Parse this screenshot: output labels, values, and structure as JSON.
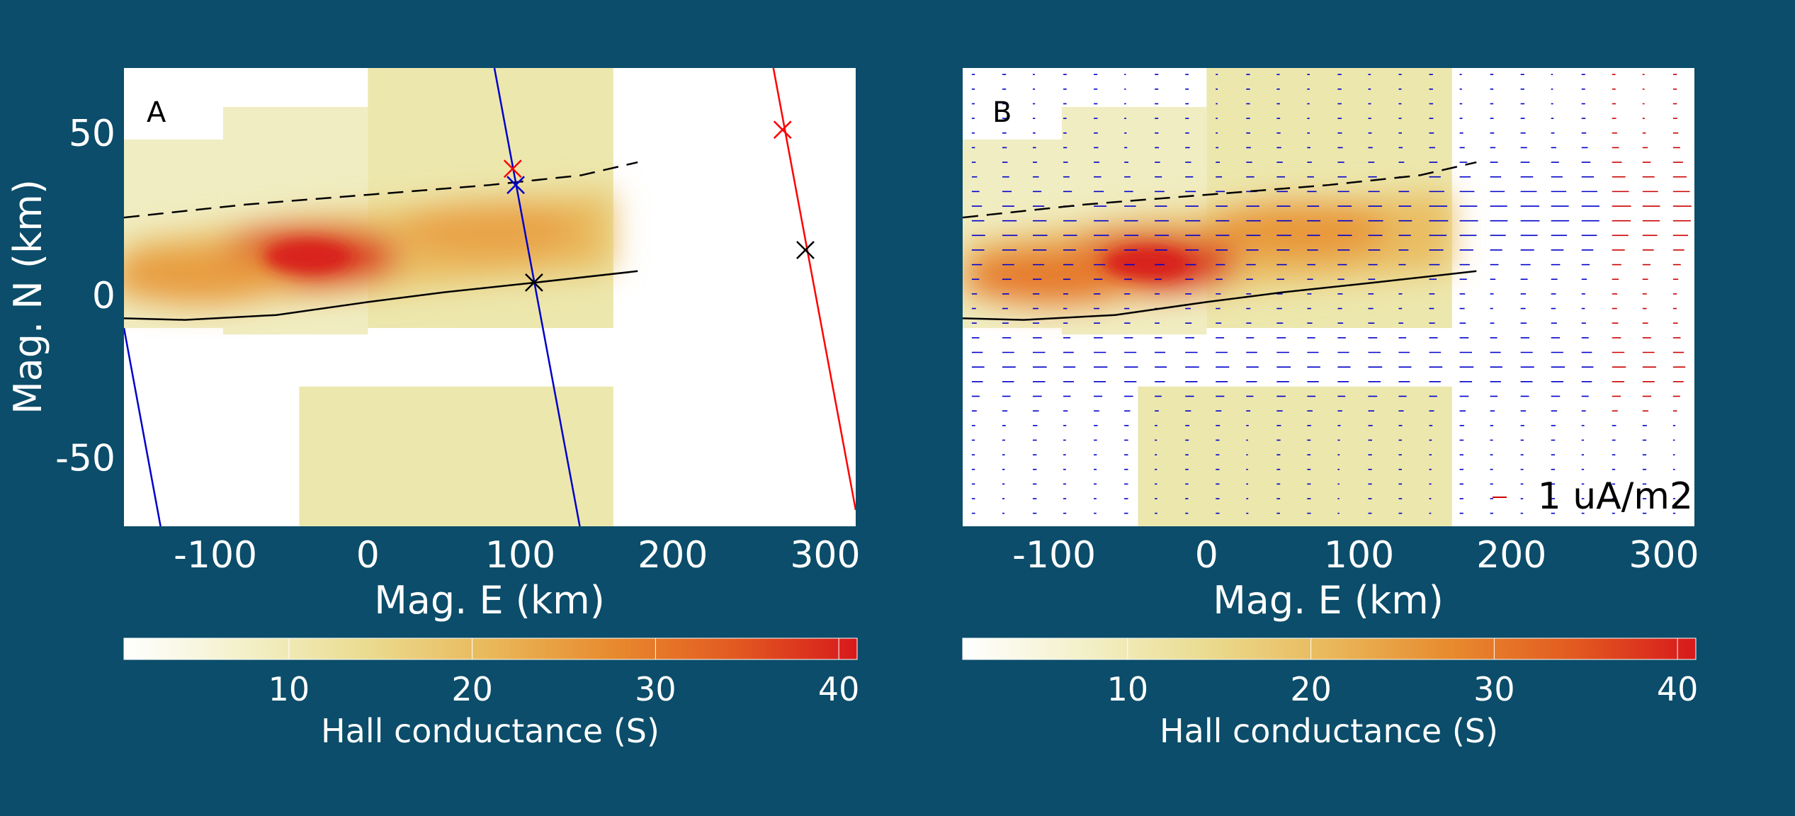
{
  "figure": {
    "background": "#0b4d6a"
  },
  "chart_data": [
    {
      "type": "heatmap",
      "panel_label": "A",
      "xlabel": "Mag. E (km)",
      "ylabel": "Mag. N (km)",
      "xlim": [
        -160,
        320
      ],
      "ylim": [
        -71,
        70
      ],
      "xticks": [
        -100,
        0,
        100,
        200,
        300
      ],
      "xtick_labels": [
        "-100",
        "0",
        "100",
        "200",
        "300"
      ],
      "yticks": [
        50,
        0,
        -50
      ],
      "ytick_labels": [
        "50",
        "0",
        "-50"
      ],
      "heatmap": {
        "x_range": [
          -160,
          161
        ],
        "description": "conductance band centered near y=10, peak ~40 S at x=-40",
        "bands": [
          {
            "x0": -160,
            "x1": -95,
            "y0": 48,
            "y1": -10,
            "level": 2
          },
          {
            "x0": -95,
            "x1": 0,
            "y0": 58,
            "y1": -12,
            "level": 2
          },
          {
            "x0": 0,
            "x1": 161,
            "y0": 70,
            "y1": -10,
            "level": 3
          },
          {
            "x0": -45,
            "x1": 161,
            "y0": -28,
            "y1": -71,
            "level": 3
          }
        ],
        "peaks": [
          {
            "x": -40,
            "y": 12,
            "value": 40
          },
          {
            "x": -110,
            "y": 6,
            "value": 25
          },
          {
            "x": 80,
            "y": 20,
            "value": 24
          }
        ]
      },
      "lines": [
        {
          "name": "dashed",
          "color": "#000000",
          "dash": true,
          "points": [
            [
              -160,
              24
            ],
            [
              -80,
              28
            ],
            [
              0,
              31
            ],
            [
              80,
              34
            ],
            [
              140,
              37
            ],
            [
              177,
              41
            ]
          ]
        },
        {
          "name": "solid",
          "color": "#000000",
          "dash": false,
          "points": [
            [
              -160,
              -7
            ],
            [
              -120,
              -7.5
            ],
            [
              -60,
              -6
            ],
            [
              0,
              -2
            ],
            [
              50,
              1
            ],
            [
              110,
              4
            ],
            [
              177,
              7.5
            ]
          ]
        },
        {
          "name": "blue-track-1",
          "color": "#0000cc",
          "dash": false,
          "points": [
            [
              -160,
              -10
            ],
            [
              -136,
              -71
            ]
          ]
        },
        {
          "name": "blue-track-2",
          "color": "#0000cc",
          "dash": false,
          "points": [
            [
              83,
              70
            ],
            [
              139,
              -71
            ]
          ]
        },
        {
          "name": "red-track",
          "color": "#ff0000",
          "dash": false,
          "points": [
            [
              266,
              70
            ],
            [
              320,
              -66
            ]
          ]
        }
      ],
      "markers": [
        {
          "x": 95,
          "y": 39,
          "color": "#ff0000"
        },
        {
          "x": 97,
          "y": 34,
          "color": "#0000cc"
        },
        {
          "x": 109,
          "y": 4,
          "color": "#000000"
        },
        {
          "x": 272,
          "y": 51,
          "color": "#ff0000"
        },
        {
          "x": 287,
          "y": 14,
          "color": "#000000"
        }
      ],
      "colorbar": {
        "label": "Hall conductance (S)",
        "ticks": [
          10,
          20,
          30,
          40
        ],
        "tick_labels": [
          "10",
          "20",
          "30",
          "40"
        ],
        "range": [
          1,
          41
        ],
        "colors": [
          "#ffffff",
          "#f3f0c8",
          "#eadb8f",
          "#e9b85a",
          "#e88a2e",
          "#e25a20",
          "#d7191c"
        ]
      }
    },
    {
      "type": "heatmap",
      "panel_label": "B",
      "xlabel": "Mag. E (km)",
      "xlim": [
        -160,
        320
      ],
      "ylim": [
        -71,
        70
      ],
      "xticks": [
        -100,
        0,
        100,
        200,
        300
      ],
      "xtick_labels": [
        "-100",
        "0",
        "100",
        "200",
        "300"
      ],
      "heatmap": {
        "x_range": [
          -160,
          161
        ],
        "description": "conductance band tilted upward, peak ~40 S at x=-40 y=10",
        "bands": [
          {
            "x0": -160,
            "x1": -95,
            "y0": 48,
            "y1": -10,
            "level": 2
          },
          {
            "x0": -95,
            "x1": 0,
            "y0": 58,
            "y1": -12,
            "level": 2
          },
          {
            "x0": 0,
            "x1": 161,
            "y0": 70,
            "y1": -10,
            "level": 3
          },
          {
            "x0": -45,
            "x1": 161,
            "y0": -28,
            "y1": -71,
            "level": 3
          }
        ],
        "peaks": [
          {
            "x": -40,
            "y": 10,
            "value": 40
          },
          {
            "x": -100,
            "y": 6,
            "value": 30
          },
          {
            "x": 60,
            "y": 20,
            "value": 26
          }
        ]
      },
      "lines": [
        {
          "name": "dashed",
          "color": "#000000",
          "dash": true,
          "points": [
            [
              -160,
              24
            ],
            [
              -80,
              28
            ],
            [
              0,
              31
            ],
            [
              80,
              34
            ],
            [
              140,
              37
            ],
            [
              177,
              41
            ]
          ]
        },
        {
          "name": "solid",
          "color": "#000000",
          "dash": false,
          "points": [
            [
              -160,
              -7
            ],
            [
              -120,
              -7.5
            ],
            [
              -60,
              -6
            ],
            [
              0,
              -2
            ],
            [
              50,
              1
            ],
            [
              110,
              4
            ],
            [
              177,
              7.5
            ]
          ]
        }
      ],
      "vector_field": {
        "orientation": "horizontal",
        "x_step": 20,
        "y_step": 4.5,
        "default_color": "#0000cc",
        "highlight_color": "#cc0000",
        "description": "east-west current density arrows; red at right edge"
      },
      "key": {
        "label": "1 uA/m2",
        "color": "#cc0000"
      },
      "colorbar": {
        "label": "Hall conductance (S)",
        "ticks": [
          10,
          20,
          30,
          40
        ],
        "tick_labels": [
          "10",
          "20",
          "30",
          "40"
        ],
        "range": [
          1,
          41
        ],
        "colors": [
          "#ffffff",
          "#f3f0c8",
          "#eadb8f",
          "#e9b85a",
          "#e88a2e",
          "#e25a20",
          "#d7191c"
        ]
      }
    }
  ]
}
